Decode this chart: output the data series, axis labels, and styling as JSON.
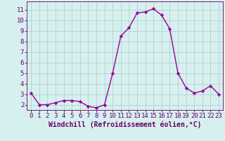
{
  "x": [
    0,
    1,
    2,
    3,
    4,
    5,
    6,
    7,
    8,
    9,
    10,
    11,
    12,
    13,
    14,
    15,
    16,
    17,
    18,
    19,
    20,
    21,
    22,
    23
  ],
  "y": [
    3.1,
    2.0,
    2.0,
    2.2,
    2.4,
    2.4,
    2.3,
    1.85,
    1.7,
    2.0,
    5.0,
    8.5,
    9.3,
    10.7,
    10.8,
    11.1,
    10.5,
    9.2,
    5.0,
    3.6,
    3.1,
    3.3,
    3.8,
    3.0
  ],
  "line_color": "#990099",
  "marker": "D",
  "marker_size": 2.2,
  "bg_color": "#d6f0f0",
  "grid_color": "#aacccc",
  "xlabel": "Windchill (Refroidissement éolien,°C)",
  "xlabel_color": "#660066",
  "xlabel_fontsize": 7.0,
  "tick_color": "#660066",
  "tick_fontsize": 6.5,
  "ylim": [
    1.5,
    11.8
  ],
  "yticks": [
    2,
    3,
    4,
    5,
    6,
    7,
    8,
    9,
    10,
    11
  ],
  "xticks": [
    0,
    1,
    2,
    3,
    4,
    5,
    6,
    7,
    8,
    9,
    10,
    11,
    12,
    13,
    14,
    15,
    16,
    17,
    18,
    19,
    20,
    21,
    22,
    23
  ],
  "spine_color": "#660066",
  "line_width": 1.0
}
